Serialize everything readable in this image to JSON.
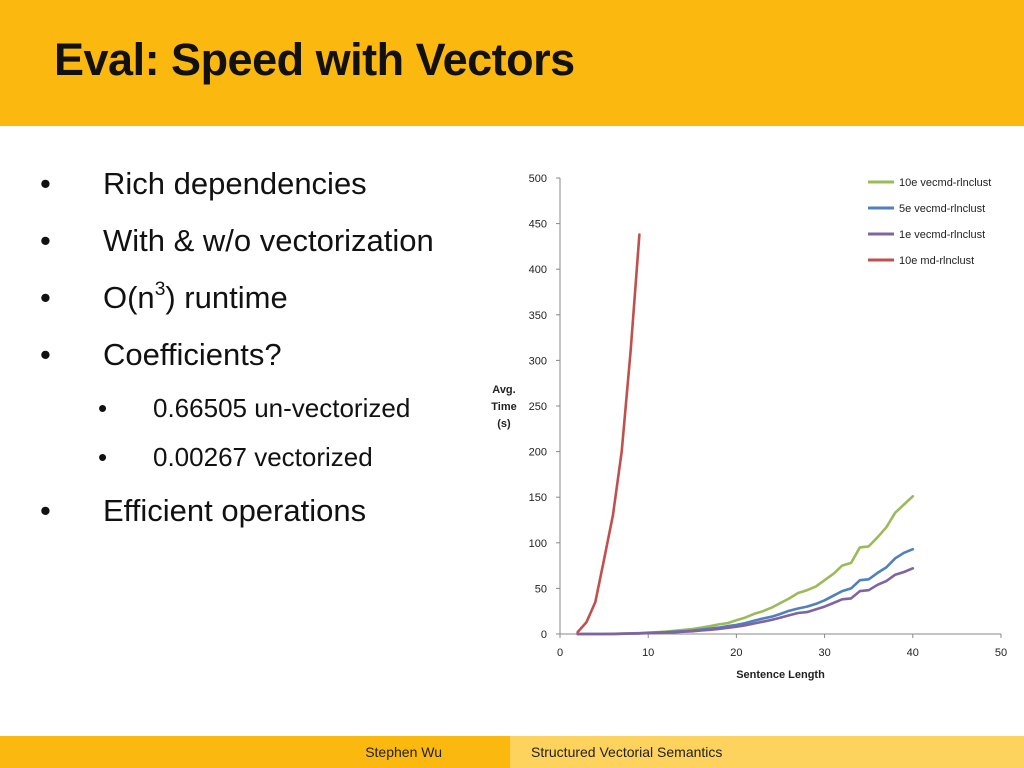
{
  "slide": {
    "title": "Eval: Speed with Vectors",
    "bullets": [
      {
        "text": "Rich dependencies"
      },
      {
        "text": "With & w/o vectorization"
      },
      {
        "pre": "O(n",
        "sup": "3",
        "post": ") runtime"
      },
      {
        "text": "Coefficients?"
      },
      {
        "text": "Efficient operations"
      }
    ],
    "sub_bullets": [
      {
        "text": "0.66505 un-vectorized"
      },
      {
        "text": "0.00267 vectorized"
      }
    ],
    "bullet_symbol": "•"
  },
  "footer": {
    "author": "Stephen Wu",
    "subject": "Structured Vectorial Semantics"
  },
  "chart_data": {
    "type": "line",
    "title": "",
    "xlabel": "Sentence Length",
    "ylabel_lines": [
      "Avg.",
      "Time",
      "(s)"
    ],
    "xlim": [
      0,
      50
    ],
    "ylim": [
      0,
      500
    ],
    "xticks": [
      0,
      10,
      20,
      30,
      40,
      50
    ],
    "yticks": [
      0,
      50,
      100,
      150,
      200,
      250,
      300,
      350,
      400,
      450,
      500
    ],
    "grid": false,
    "legend_position": "top-right",
    "series": [
      {
        "name": "10e vecmd-rlnclust",
        "color": "#9BBB59",
        "x": [
          2,
          3,
          4,
          5,
          6,
          7,
          8,
          9,
          10,
          11,
          12,
          13,
          14,
          15,
          16,
          17,
          18,
          19,
          20,
          21,
          22,
          23,
          24,
          25,
          26,
          27,
          28,
          29,
          30,
          31,
          32,
          33,
          34,
          35,
          36,
          37,
          38,
          39,
          40
        ],
        "y": [
          0,
          0,
          0,
          0,
          0.2,
          0.4,
          0.7,
          1,
          1.5,
          2,
          2.5,
          3.5,
          4.5,
          5.5,
          7,
          8.5,
          10.5,
          12,
          15,
          18,
          22,
          25,
          29,
          34,
          39,
          45,
          48,
          52,
          59,
          66,
          75,
          78,
          95,
          96,
          106,
          117,
          133,
          142,
          151
        ]
      },
      {
        "name": "5e vecmd-rlnclust",
        "color": "#4F81BD",
        "x": [
          2,
          3,
          4,
          5,
          6,
          7,
          8,
          9,
          10,
          11,
          12,
          13,
          14,
          15,
          16,
          17,
          18,
          19,
          20,
          21,
          22,
          23,
          24,
          25,
          26,
          27,
          28,
          29,
          30,
          31,
          32,
          33,
          34,
          35,
          36,
          37,
          38,
          39,
          40
        ],
        "y": [
          0,
          0,
          0,
          0,
          0.1,
          0.3,
          0.5,
          0.8,
          1.1,
          1.5,
          2,
          2.5,
          3,
          3.8,
          4.8,
          5.8,
          7,
          8.5,
          10,
          12,
          14.5,
          17,
          19,
          22,
          25.5,
          28,
          30,
          33,
          37,
          42,
          47,
          50,
          59,
          60,
          67,
          73,
          83,
          89,
          93
        ]
      },
      {
        "name": "1e vecmd-rlnclust",
        "color": "#8064A2",
        "x": [
          2,
          3,
          4,
          5,
          6,
          7,
          8,
          9,
          10,
          11,
          12,
          13,
          14,
          15,
          16,
          17,
          18,
          19,
          20,
          21,
          22,
          23,
          24,
          25,
          26,
          27,
          28,
          29,
          30,
          31,
          32,
          33,
          34,
          35,
          36,
          37,
          38,
          39,
          40
        ],
        "y": [
          0,
          0,
          0,
          0,
          0.1,
          0.2,
          0.4,
          0.6,
          0.9,
          1.2,
          1.6,
          2,
          2.5,
          3,
          3.8,
          4.6,
          5.6,
          6.8,
          8,
          9.5,
          11.5,
          13.5,
          15.5,
          18,
          20.5,
          23,
          24,
          27,
          30,
          34,
          38,
          39,
          47,
          48,
          54,
          58,
          65,
          68,
          72
        ]
      },
      {
        "name": "10e md-rlnclust",
        "color": "#C0504D",
        "x": [
          2,
          3,
          4,
          5,
          6,
          7,
          8,
          9
        ],
        "y": [
          2,
          13,
          35,
          82,
          130,
          200,
          310,
          438
        ]
      }
    ]
  }
}
